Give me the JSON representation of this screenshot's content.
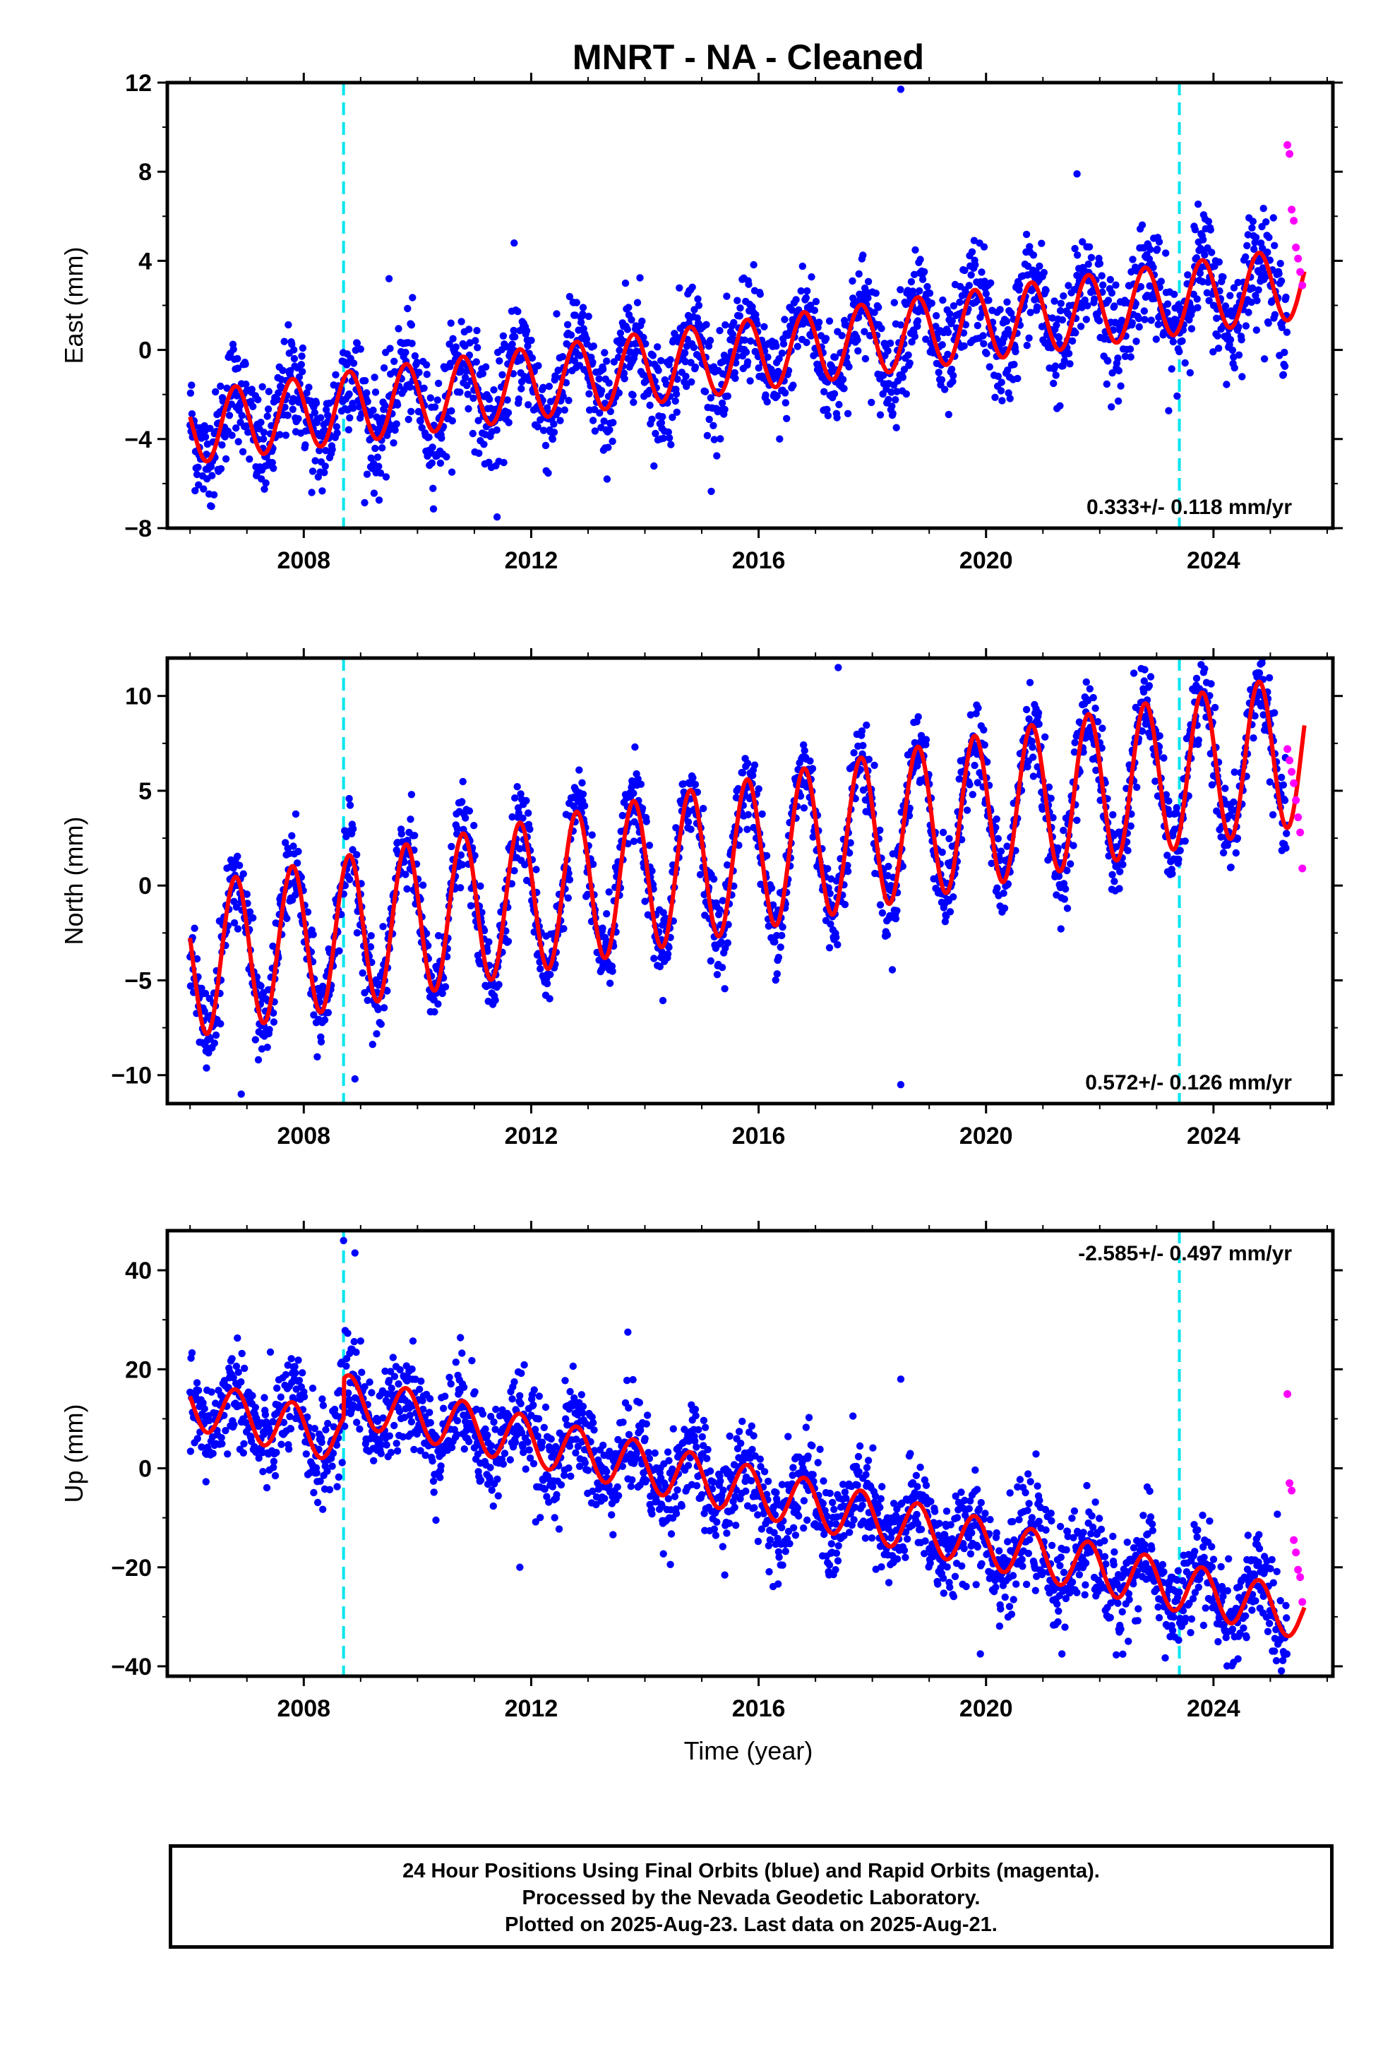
{
  "title": "MNRT  - NA - Cleaned",
  "xlabel": "Time (year)",
  "caption": {
    "line1": "24 Hour Positions Using Final Orbits (blue) and Rapid Orbits (magenta).",
    "line2": "Processed by the Nevada Geodetic Laboratory.",
    "line3": "Plotted on 2025-Aug-23. Last data on 2025-Aug-21."
  },
  "colors": {
    "final_orbits": "#0000ff",
    "rapid_orbits": "#ff00ff",
    "model_fit": "#ff0000",
    "events": "#00e5ee"
  },
  "chart_data": [
    {
      "type": "scatter",
      "ylabel": "East (mm)",
      "xlim": [
        2005.6,
        2026.1
      ],
      "ylim": [
        -8,
        12
      ],
      "yticks": [
        -8,
        -4,
        0,
        4,
        8,
        12
      ],
      "xticks": [
        2008,
        2012,
        2016,
        2020,
        2024
      ],
      "rate_label": "0.333+/- 0.118 mm/yr",
      "rate_position": "bottom-right",
      "events": [
        2008.7,
        2023.4
      ],
      "model": {
        "start_year": 2006.0,
        "start_value": -3.5,
        "slope": 0.333,
        "annual_amplitude": 1.6,
        "annual_phase": 0.55
      },
      "series": [
        {
          "name": "Final Orbits",
          "x_range": [
            2006.0,
            2025.3
          ],
          "scatter": 1.2,
          "outliers": [
            [
              2018.5,
              11.7
            ],
            [
              2009.5,
              3.2
            ],
            [
              2011.4,
              -7.5
            ],
            [
              2011.7,
              4.8
            ],
            [
              2013.3,
              -4.4
            ],
            [
              2021.6,
              7.9
            ]
          ]
        },
        {
          "name": "Rapid Orbits",
          "x_range": [
            2025.3,
            2025.6
          ],
          "values": [
            9.2,
            8.8,
            6.3,
            5.8,
            4.6,
            4.1,
            3.5,
            2.9
          ]
        }
      ]
    },
    {
      "type": "scatter",
      "ylabel": "North (mm)",
      "xlim": [
        2005.6,
        2026.1
      ],
      "ylim": [
        -11.5,
        12
      ],
      "yticks": [
        -10,
        -5,
        0,
        5,
        10
      ],
      "xticks": [
        2008,
        2012,
        2016,
        2020,
        2024
      ],
      "rate_label": "0.572+/- 0.126 mm/yr",
      "rate_position": "bottom-right",
      "events": [
        2008.7,
        2023.4
      ],
      "model": {
        "start_year": 2006.0,
        "start_value": -4.0,
        "slope": 0.572,
        "annual_amplitude": 4.0,
        "annual_phase": 0.55
      },
      "series": [
        {
          "name": "Final Orbits",
          "x_range": [
            2006.0,
            2025.3
          ],
          "scatter": 1.1,
          "outliers": [
            [
              2017.4,
              11.5
            ],
            [
              2018.5,
              -10.5
            ],
            [
              2006.9,
              -11.0
            ],
            [
              2008.9,
              -10.2
            ],
            [
              2022.6,
              11.2
            ]
          ]
        },
        {
          "name": "Rapid Orbits",
          "x_range": [
            2025.3,
            2025.6
          ],
          "values": [
            7.2,
            6.6,
            6.0,
            5.4,
            4.5,
            3.6,
            2.8,
            0.9
          ]
        }
      ]
    },
    {
      "type": "scatter",
      "ylabel": "Up (mm)",
      "xlim": [
        2005.6,
        2026.1
      ],
      "ylim": [
        -42,
        48
      ],
      "yticks": [
        -40,
        -20,
        0,
        20,
        40
      ],
      "xticks": [
        2008,
        2012,
        2016,
        2020,
        2024
      ],
      "rate_label": "-2.585+/- 0.497 mm/yr",
      "rate_position": "top-right",
      "events": [
        2008.7,
        2023.4
      ],
      "model": {
        "start_year": 2006.0,
        "start_value": 13.0,
        "slope": -2.585,
        "annual_amplitude": 5.0,
        "annual_phase": 0.55,
        "offset_at_event": 8.0
      },
      "series": [
        {
          "name": "Final Orbits",
          "x_range": [
            2006.0,
            2025.3
          ],
          "scatter": 5.0,
          "outliers": [
            [
              2008.7,
              46.0
            ],
            [
              2008.9,
              43.5
            ],
            [
              2011.8,
              -20.0
            ],
            [
              2013.7,
              27.5
            ],
            [
              2018.5,
              18.0
            ],
            [
              2019.9,
              -37.5
            ]
          ]
        },
        {
          "name": "Rapid Orbits",
          "x_range": [
            2025.3,
            2025.6
          ],
          "values": [
            15.0,
            -3.0,
            -4.5,
            -14.5,
            -17.0,
            -20.5,
            -22.0,
            -27.0
          ]
        }
      ]
    }
  ]
}
